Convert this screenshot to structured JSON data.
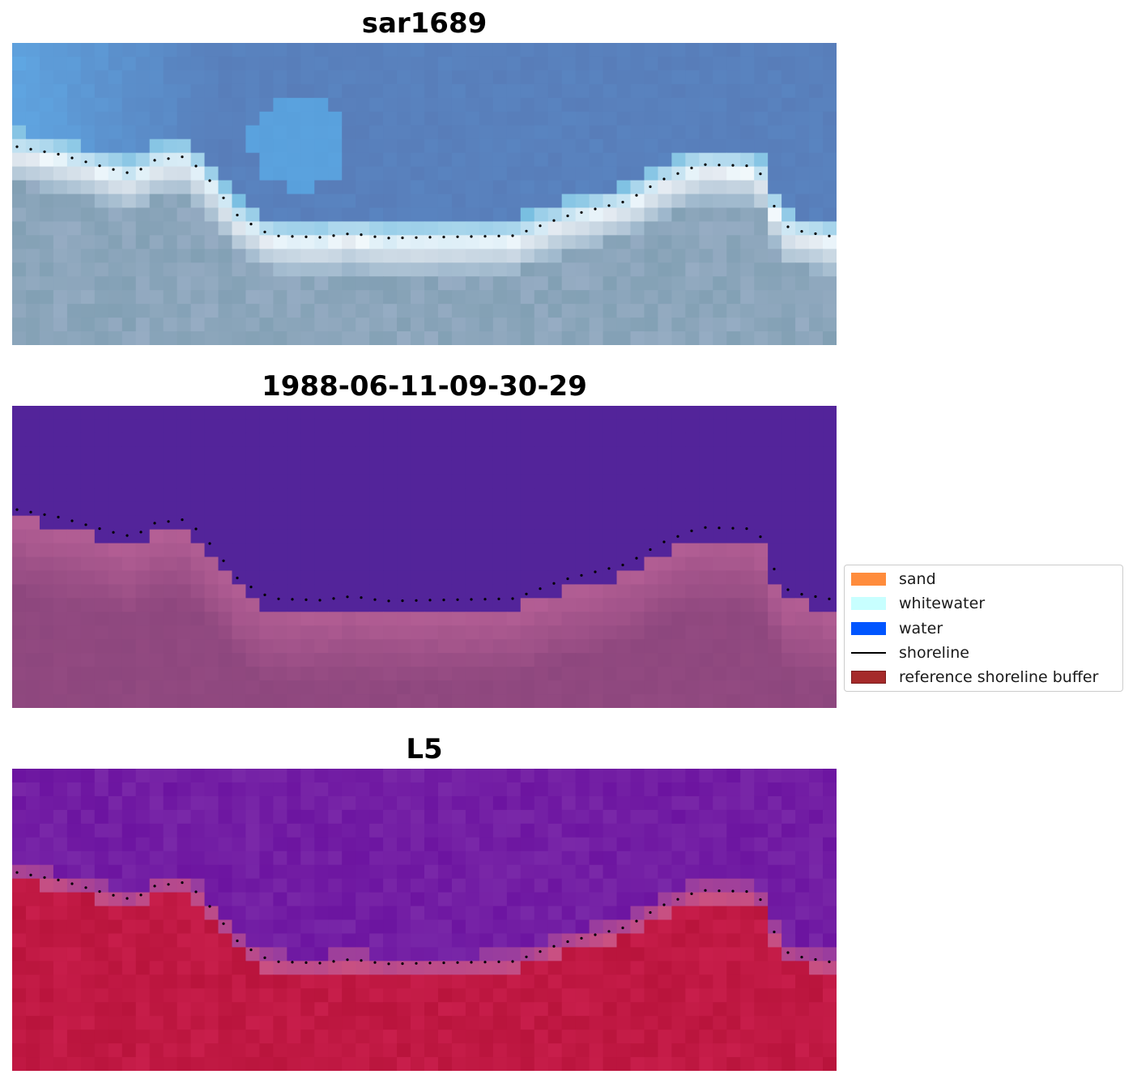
{
  "panels": [
    {
      "title": "sar1689",
      "colormap": "rgb"
    },
    {
      "title": "1988-06-11-09-30-29",
      "colormap": "classified"
    },
    {
      "title": "L5",
      "colormap": "index"
    }
  ],
  "legend": {
    "items": [
      {
        "label": "sand",
        "color": "#ff8c3c",
        "kind": "patch",
        "icon": "sand-swatch-icon"
      },
      {
        "label": "whitewater",
        "color": "#c8ffff",
        "kind": "patch",
        "icon": "whitewater-swatch-icon"
      },
      {
        "label": "water",
        "color": "#0055ff",
        "kind": "patch",
        "icon": "water-swatch-icon"
      },
      {
        "label": "shoreline",
        "color": "#000000",
        "kind": "line",
        "icon": "shoreline-line-icon"
      },
      {
        "label": "reference shoreline buffer",
        "color": "#a52a2a",
        "kind": "patch",
        "icon": "reference-shoreline-buffer-swatch-icon"
      }
    ]
  },
  "colors": {
    "water_dark": "#53249a",
    "sand_pink": "#b45a8c",
    "index_purple": "#6a15a0",
    "index_red": "#c0143c"
  }
}
